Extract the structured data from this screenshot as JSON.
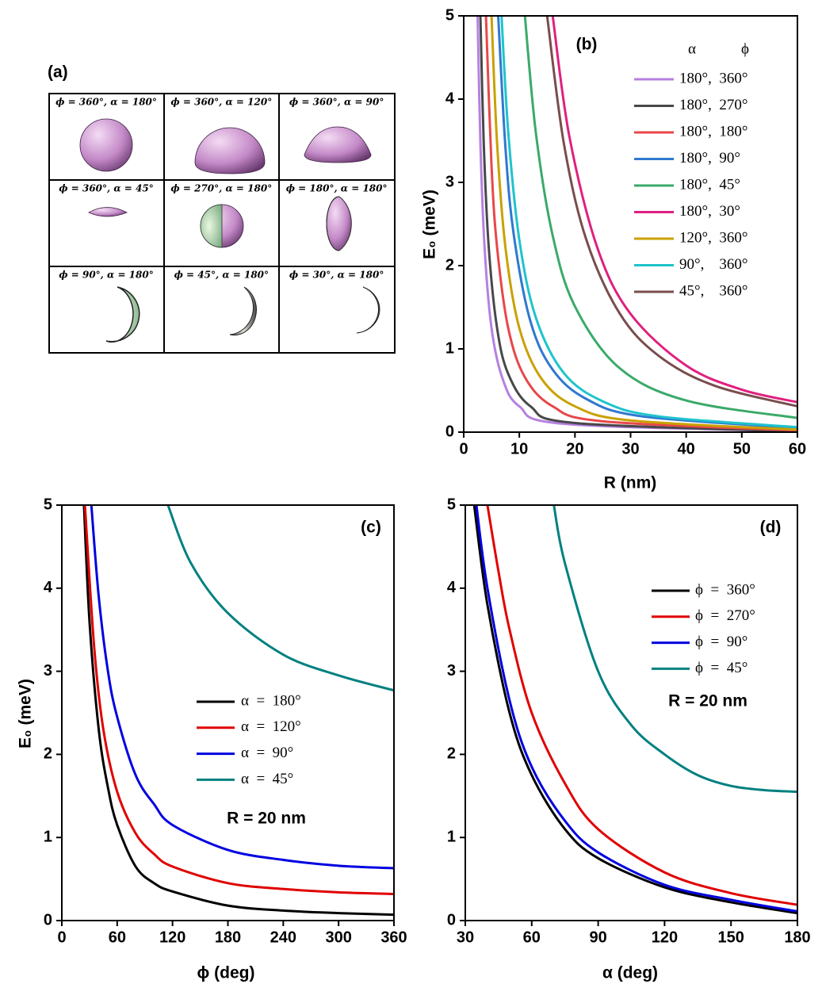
{
  "panel_a": {
    "label": "(a)",
    "cells": [
      "ϕ = 360°, α = 180°",
      "ϕ = 360°, α = 120°",
      "ϕ = 360°, α = 90°",
      "ϕ = 360°, α = 45°",
      "ϕ = 270°, α = 180°",
      "ϕ = 180°, α = 180°",
      "ϕ = 90°, α = 180°",
      "ϕ = 45°, α = 180°",
      "ϕ = 30°, α = 180°"
    ]
  },
  "chart_data": [
    {
      "type": "line",
      "panel_label": "(b)",
      "xlabel": "R (nm)",
      "ylabel": "E₀ (meV)",
      "xlim": [
        0,
        60
      ],
      "ylim": [
        0,
        5
      ],
      "xticks": [
        0,
        10,
        20,
        30,
        40,
        50,
        60
      ],
      "yticks": [
        0,
        1,
        2,
        3,
        4,
        5
      ],
      "legend": "upper right",
      "legend_headers": [
        "α",
        "ϕ"
      ],
      "series": [
        {
          "name": "180°,  360°",
          "color": "#b680e0",
          "x": [
            2.5,
            3,
            3.75,
            5,
            7,
            10,
            18,
            60
          ],
          "values": [
            5,
            3.47,
            2.22,
            1.25,
            0.64,
            0.31,
            0.1,
            0.01
          ]
        },
        {
          "name": "180°,  270°",
          "color": "#484848",
          "x": [
            3,
            3.6,
            4.5,
            6,
            8,
            12,
            20,
            60
          ],
          "values": [
            5,
            3.47,
            2.22,
            1.25,
            0.7,
            0.31,
            0.11,
            0.01
          ]
        },
        {
          "name": "180°,  180°",
          "color": "#e8474a",
          "x": [
            4,
            5,
            6,
            8,
            11,
            16,
            25,
            60
          ],
          "values": [
            5,
            3.2,
            2.22,
            1.25,
            0.66,
            0.31,
            0.13,
            0.02
          ]
        },
        {
          "name": "180°,  90°",
          "color": "#2f78d0",
          "x": [
            6.2,
            7.5,
            9,
            12,
            16,
            22,
            32,
            60
          ],
          "values": [
            5,
            3.42,
            2.37,
            1.33,
            0.75,
            0.4,
            0.19,
            0.05
          ]
        },
        {
          "name": "180°,  45°",
          "color": "#3aaa68",
          "x": [
            11,
            13,
            16,
            20,
            28,
            40,
            60
          ],
          "values": [
            5,
            3.58,
            2.36,
            1.51,
            0.77,
            0.38,
            0.17
          ]
        },
        {
          "name": "180°,  30°",
          "color": "#e0207f",
          "x": [
            16,
            19,
            24,
            30,
            40,
            50,
            60
          ],
          "values": [
            5,
            3.55,
            2.22,
            1.42,
            0.8,
            0.51,
            0.36
          ]
        },
        {
          "name": "120°,  360°",
          "color": "#c9a100",
          "x": [
            5,
            6,
            7.5,
            10,
            14,
            20,
            30,
            60
          ],
          "values": [
            5,
            3.47,
            2.22,
            1.25,
            0.64,
            0.31,
            0.14,
            0.03
          ]
        },
        {
          "name": "90°,    360°",
          "color": "#1ec4cc",
          "x": [
            6.8,
            8,
            10,
            13,
            18,
            25,
            35,
            60
          ],
          "values": [
            5,
            3.61,
            2.31,
            1.37,
            0.71,
            0.37,
            0.19,
            0.06
          ]
        },
        {
          "name": "45°,    360°",
          "color": "#7a4d4d",
          "x": [
            15,
            18,
            22,
            28,
            35,
            45,
            60
          ],
          "values": [
            5,
            3.47,
            2.32,
            1.43,
            0.92,
            0.56,
            0.31
          ]
        }
      ]
    },
    {
      "type": "line",
      "panel_label": "(c)",
      "xlabel": "ϕ (deg)",
      "ylabel": "E₀ (meV)",
      "xlim": [
        0,
        360
      ],
      "ylim": [
        0,
        5
      ],
      "xticks": [
        0,
        60,
        120,
        180,
        240,
        300,
        360
      ],
      "yticks": [
        0,
        1,
        2,
        3,
        4,
        5
      ],
      "legend": "center right",
      "annotation": "R = 20 nm",
      "series": [
        {
          "name": "α  =  180°",
          "color": "#000000",
          "x": [
            24,
            30,
            40,
            50,
            60,
            80,
            100,
            120,
            180,
            240,
            300,
            360
          ],
          "values": [
            5,
            3.6,
            2.3,
            1.6,
            1.15,
            0.65,
            0.45,
            0.35,
            0.18,
            0.12,
            0.09,
            0.07
          ]
        },
        {
          "name": "α  =  120°",
          "color": "#e00000",
          "x": [
            25,
            35,
            45,
            60,
            80,
            100,
            120,
            180,
            240,
            300,
            360
          ],
          "values": [
            5,
            3.3,
            2.3,
            1.55,
            1.05,
            0.8,
            0.65,
            0.45,
            0.38,
            0.34,
            0.32
          ]
        },
        {
          "name": "α  =  90°",
          "color": "#0000e0",
          "x": [
            32,
            40,
            50,
            60,
            80,
            100,
            120,
            180,
            240,
            300,
            360
          ],
          "values": [
            5,
            3.9,
            3.0,
            2.45,
            1.75,
            1.4,
            1.15,
            0.85,
            0.73,
            0.66,
            0.63
          ]
        },
        {
          "name": "α  =  45°",
          "color": "#008080",
          "x": [
            115,
            140,
            180,
            240,
            300,
            360
          ],
          "values": [
            5,
            4.3,
            3.7,
            3.2,
            2.95,
            2.77
          ]
        }
      ]
    },
    {
      "type": "line",
      "panel_label": "(d)",
      "xlabel": "α  (deg)",
      "xlim": [
        30,
        180
      ],
      "ylim": [
        0,
        5
      ],
      "xticks": [
        30,
        60,
        90,
        120,
        150,
        180
      ],
      "yticks": [
        0,
        1,
        2,
        3,
        4,
        5
      ],
      "legend": "upper right",
      "annotation": "R = 20 nm",
      "series": [
        {
          "name": "ϕ  =  360°",
          "color": "#000000",
          "x": [
            34,
            40,
            50,
            60,
            75,
            90,
            120,
            150,
            180
          ],
          "values": [
            5,
            3.8,
            2.5,
            1.75,
            1.1,
            0.75,
            0.4,
            0.22,
            0.09
          ]
        },
        {
          "name": "ϕ  =  270°",
          "color": "#e00000",
          "x": [
            40,
            45,
            50,
            60,
            75,
            90,
            120,
            150,
            180
          ],
          "values": [
            5,
            4.2,
            3.5,
            2.5,
            1.65,
            1.1,
            0.58,
            0.33,
            0.19
          ]
        },
        {
          "name": "ϕ  =  90°",
          "color": "#0000e0",
          "x": [
            35,
            40,
            50,
            60,
            75,
            90,
            120,
            150,
            180
          ],
          "values": [
            5,
            4.0,
            2.65,
            1.85,
            1.2,
            0.82,
            0.43,
            0.25,
            0.11
          ]
        },
        {
          "name": "ϕ  =  45°",
          "color": "#008080",
          "x": [
            70,
            75,
            90,
            105,
            120,
            135,
            150,
            165,
            180
          ],
          "values": [
            5,
            4.3,
            3.0,
            2.35,
            2.0,
            1.75,
            1.62,
            1.57,
            1.55
          ]
        }
      ]
    }
  ]
}
